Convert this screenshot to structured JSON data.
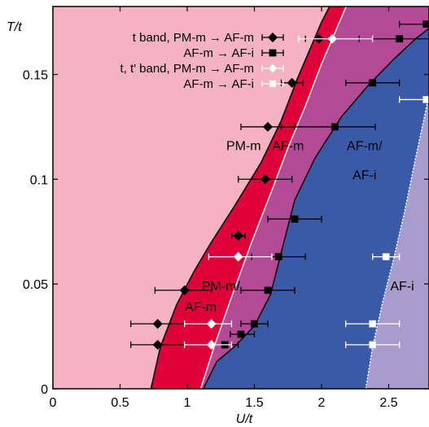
{
  "chart_data": {
    "type": "scatter",
    "xlabel": "U/t",
    "ylabel": "T/t",
    "xlim": [
      0,
      2.8
    ],
    "ylim": [
      0,
      0.185
    ],
    "x_ticks": [
      {
        "value": 0,
        "label": "0"
      },
      {
        "value": 0.5,
        "label": "0.5"
      },
      {
        "value": 1,
        "label": "1"
      },
      {
        "value": 1.5,
        "label": "1.5"
      },
      {
        "value": 2,
        "label": "2"
      },
      {
        "value": 2.5,
        "label": "2.5"
      }
    ],
    "y_ticks": [
      {
        "value": 0,
        "label": "0"
      },
      {
        "value": 0.05,
        "label": "0.05"
      },
      {
        "value": 0.1,
        "label": "0.1"
      },
      {
        "value": 0.15,
        "label": "0.15"
      }
    ],
    "grid": false,
    "legend_position": "top-right",
    "colors": {
      "pm_m": "#f4b2c2",
      "coexist_pm_af": "#e0003a",
      "af_m": "#b34a96",
      "af_m_inner": "#b06aaa",
      "af_i_coexist": "#3a5aa8",
      "af_i": "#a89ccc",
      "black": "#000000",
      "white": "#ffffff"
    },
    "region_labels": [
      {
        "text": "PM-m",
        "x": 1.42,
        "y": 0.114
      },
      {
        "text": "AF-m",
        "x": 1.75,
        "y": 0.114
      },
      {
        "text": "AF-m/",
        "x": 2.32,
        "y": 0.114
      },
      {
        "text": "AF-i",
        "x": 2.32,
        "y": 0.1
      },
      {
        "text": "PM-m/",
        "x": 1.25,
        "y": 0.047
      },
      {
        "text": "AF-m",
        "x": 1.1,
        "y": 0.037
      },
      {
        "text": "AF-i",
        "x": 2.6,
        "y": 0.047
      }
    ],
    "boundaries": {
      "pm_af_left": [
        [
          0.73,
          0
        ],
        [
          0.8,
          0.02
        ],
        [
          0.92,
          0.04
        ],
        [
          1.05,
          0.056
        ],
        [
          1.18,
          0.07
        ],
        [
          1.35,
          0.087
        ],
        [
          1.55,
          0.108
        ],
        [
          1.7,
          0.128
        ],
        [
          1.82,
          0.148
        ],
        [
          1.92,
          0.163
        ],
        [
          2.0,
          0.175
        ],
        [
          2.08,
          0.185
        ]
      ],
      "pm_af_right": [
        [
          1.1,
          0
        ],
        [
          1.2,
          0.02
        ],
        [
          1.32,
          0.042
        ],
        [
          1.48,
          0.07
        ],
        [
          1.62,
          0.093
        ],
        [
          1.75,
          0.115
        ],
        [
          1.88,
          0.135
        ],
        [
          2.0,
          0.155
        ],
        [
          2.1,
          0.17
        ],
        [
          2.2,
          0.185
        ]
      ],
      "af_mi_left": [
        [
          1.12,
          0
        ],
        [
          1.22,
          0.013
        ],
        [
          1.35,
          0.02
        ],
        [
          1.5,
          0.03
        ],
        [
          1.62,
          0.045
        ],
        [
          1.72,
          0.07
        ],
        [
          1.8,
          0.09
        ],
        [
          1.95,
          0.11
        ],
        [
          2.15,
          0.13
        ],
        [
          2.35,
          0.145
        ],
        [
          2.55,
          0.158
        ],
        [
          2.7,
          0.167
        ],
        [
          2.8,
          0.172
        ]
      ],
      "af_mi_right": [
        [
          2.33,
          0
        ],
        [
          2.38,
          0.02
        ],
        [
          2.45,
          0.04
        ],
        [
          2.53,
          0.06
        ],
        [
          2.62,
          0.085
        ],
        [
          2.7,
          0.11
        ],
        [
          2.76,
          0.128
        ],
        [
          2.8,
          0.14
        ]
      ]
    },
    "series": [
      {
        "name": "t band, PM-m → AF-m",
        "marker": "diamond",
        "color": "#000000",
        "points": [
          {
            "x": 0.78,
            "y": 0.021,
            "xerr": [
              0.2,
              0.2
            ]
          },
          {
            "x": 0.78,
            "y": 0.031,
            "xerr": [
              0.2,
              0.2
            ]
          },
          {
            "x": 0.98,
            "y": 0.047,
            "xerr": [
              0.22,
              0.2
            ]
          },
          {
            "x": 1.38,
            "y": 0.073,
            "xerr": [
              0.05,
              0.05
            ]
          },
          {
            "x": 1.58,
            "y": 0.1,
            "xerr": [
              0.2,
              0.2
            ]
          },
          {
            "x": 1.78,
            "y": 0.146,
            "xerr": [
              0.08,
              0.08
            ]
          },
          {
            "x": 1.6,
            "y": 0.125,
            "xerr": [
              0.2,
              0.2
            ]
          },
          {
            "x": 1.98,
            "y": 0.167,
            "xerr": [
              0.1,
              0.08
            ]
          }
        ]
      },
      {
        "name": "AF-m → AF-i",
        "marker": "square",
        "color": "#000000",
        "points": [
          {
            "x": 1.28,
            "y": 0.021,
            "xerr": [
              0.1,
              0.1
            ]
          },
          {
            "x": 1.4,
            "y": 0.026,
            "xerr": [
              0.08,
              0.1
            ]
          },
          {
            "x": 1.5,
            "y": 0.031,
            "xerr": [
              0.1,
              0.1
            ]
          },
          {
            "x": 1.6,
            "y": 0.047,
            "xerr": [
              0.2,
              0.2
            ]
          },
          {
            "x": 1.68,
            "y": 0.063,
            "xerr": [
              0.2,
              0.2
            ]
          },
          {
            "x": 1.8,
            "y": 0.081,
            "xerr": [
              0.2,
              0.2
            ]
          },
          {
            "x": 2.1,
            "y": 0.125,
            "xerr": [
              0.4,
              0.3
            ]
          },
          {
            "x": 2.38,
            "y": 0.146,
            "xerr": [
              0.2,
              0.2
            ]
          },
          {
            "x": 2.58,
            "y": 0.167,
            "xerr": [
              0.3,
              0.3
            ]
          },
          {
            "x": 2.78,
            "y": 0.174,
            "xerr": [
              0.2,
              0.2
            ]
          }
        ]
      },
      {
        "name": "t, t' band, PM-m → AF-m",
        "marker": "diamond",
        "color": "#ffffff",
        "points": [
          {
            "x": 1.18,
            "y": 0.021,
            "xerr": [
              0.2,
              0.15
            ]
          },
          {
            "x": 1.18,
            "y": 0.031,
            "xerr": [
              0.2,
              0.15
            ]
          },
          {
            "x": 1.38,
            "y": 0.063,
            "xerr": [
              0.22,
              0.25
            ]
          },
          {
            "x": 2.08,
            "y": 0.167,
            "xerr": [
              0.25,
              0.3
            ]
          }
        ]
      },
      {
        "name": "AF-m → AF-i",
        "marker": "square",
        "color": "#ffffff",
        "points": [
          {
            "x": 2.38,
            "y": 0.021,
            "xerr": [
              0.2,
              0.2
            ]
          },
          {
            "x": 2.38,
            "y": 0.031,
            "xerr": [
              0.2,
              0.2
            ]
          },
          {
            "x": 2.48,
            "y": 0.063,
            "xerr": [
              0.1,
              0.1
            ]
          },
          {
            "x": 2.78,
            "y": 0.138,
            "xerr": [
              0.2,
              0.1
            ]
          }
        ]
      }
    ]
  }
}
